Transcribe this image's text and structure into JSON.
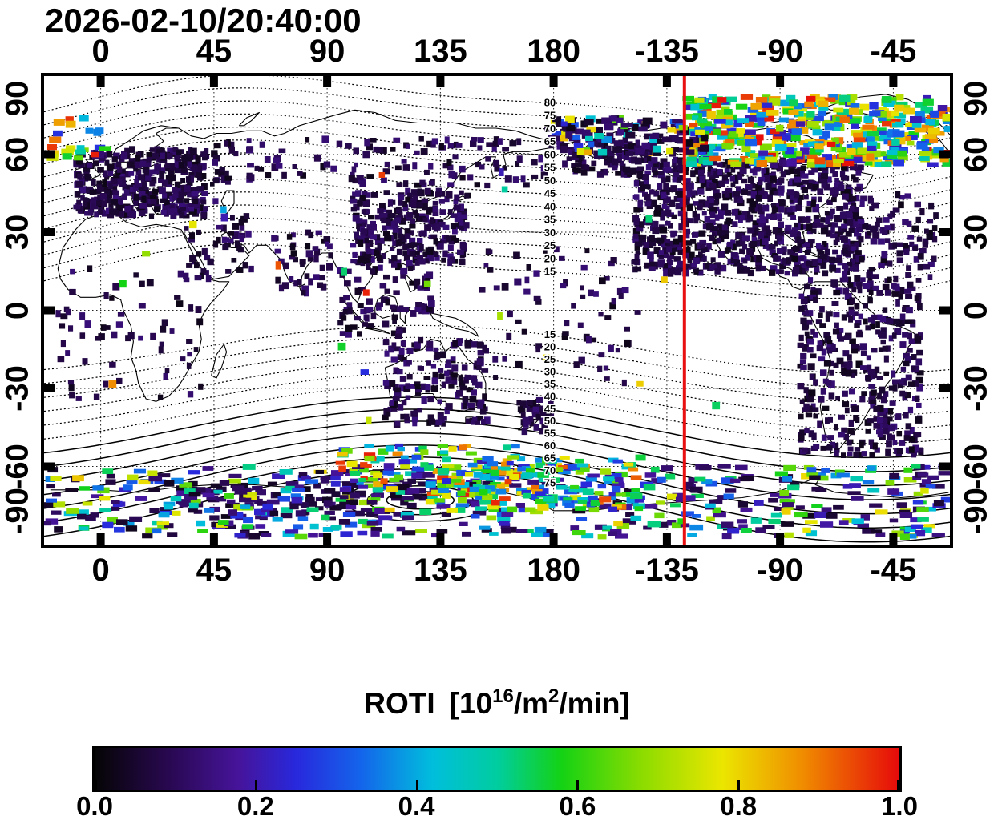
{
  "title": "2026-02-10/20:40:00",
  "chart_data": {
    "type": "heatmap",
    "description": "Global map of GNSS ROTI measurements with geomagnetic-latitude contours, world coastlines, dotted lon/lat grid and a red meridian marker line",
    "x_ticks": [
      "0",
      "45",
      "90",
      "135",
      "180",
      "-135",
      "-90",
      "-45"
    ],
    "x_tick_lons": [
      0,
      45,
      90,
      135,
      180,
      -135,
      -90,
      -45
    ],
    "y_ticks": [
      "90",
      "60",
      "30",
      "0",
      "-30",
      "-60",
      "-90"
    ],
    "y_tick_lats": [
      90,
      60,
      30,
      0,
      -30,
      -60,
      -90
    ],
    "lon_range_displayed": [
      -22.5,
      337.5
    ],
    "lat_range": [
      -90,
      90
    ],
    "grid": true,
    "contour_levels_north": [
      80,
      75,
      70,
      65,
      60,
      55,
      50,
      45,
      40,
      35,
      30,
      25,
      20,
      15
    ],
    "contour_levels_south": [
      15,
      20,
      25,
      30,
      35,
      40,
      45,
      50,
      55,
      60,
      65,
      70,
      75
    ],
    "red_meridian_lon": -128,
    "red_line_color": "#e81010",
    "colorbar": {
      "quantity": "ROTI",
      "unit_prefix": "[10",
      "unit_exponent": "16",
      "unit_mid": "/m",
      "unit_sup2": "2",
      "unit_suffix": "/min]",
      "ticks": [
        "0.0",
        "0.2",
        "0.4",
        "0.6",
        "0.8",
        "1.0"
      ],
      "range": [
        0,
        1
      ]
    },
    "colormap_stops": [
      {
        "pos": 0.0,
        "color": "#050505"
      },
      {
        "pos": 0.09,
        "color": "#28084f"
      },
      {
        "pos": 0.18,
        "color": "#46149b"
      },
      {
        "pos": 0.25,
        "color": "#2828dc"
      },
      {
        "pos": 0.33,
        "color": "#1464eb"
      },
      {
        "pos": 0.42,
        "color": "#00bedc"
      },
      {
        "pos": 0.5,
        "color": "#00cda0"
      },
      {
        "pos": 0.58,
        "color": "#14d214"
      },
      {
        "pos": 0.68,
        "color": "#8cdc00"
      },
      {
        "pos": 0.78,
        "color": "#ebe600"
      },
      {
        "pos": 0.88,
        "color": "#f08c00"
      },
      {
        "pos": 1.0,
        "color": "#e60a0a"
      }
    ],
    "scatter_regions": [
      {
        "name": "europe",
        "lon": [
          -10,
          42
        ],
        "lat": [
          36,
          62
        ],
        "count": 430,
        "mode": "dark",
        "w": 7,
        "h": 7
      },
      {
        "name": "siberia",
        "lon": [
          42,
          188
        ],
        "lat": [
          48,
          66
        ],
        "count": 150,
        "mode": "dark",
        "w": 7,
        "h": 7
      },
      {
        "name": "east-asia",
        "lon": [
          100,
          146
        ],
        "lat": [
          18,
          46
        ],
        "count": 290,
        "mode": "dark",
        "w": 7,
        "h": 7
      },
      {
        "name": "se-asia",
        "lon": [
          95,
          132
        ],
        "lat": [
          -10,
          18
        ],
        "count": 90,
        "mode": "dark",
        "w": 7,
        "h": 7
      },
      {
        "name": "india",
        "lon": [
          68,
          92
        ],
        "lat": [
          6,
          30
        ],
        "count": 45,
        "mode": "dark",
        "w": 7,
        "h": 7
      },
      {
        "name": "middle-east",
        "lon": [
          34,
          60
        ],
        "lat": [
          12,
          42
        ],
        "count": 55,
        "mode": "dark",
        "w": 7,
        "h": 7
      },
      {
        "name": "africa",
        "lon": [
          -17,
          40
        ],
        "lat": [
          -34,
          16
        ],
        "count": 65,
        "mode": "dark",
        "w": 7,
        "h": 7
      },
      {
        "name": "australia",
        "lon": [
          113,
          154
        ],
        "lat": [
          -44,
          -11
        ],
        "count": 170,
        "mode": "dark",
        "w": 7,
        "h": 7
      },
      {
        "name": "new-zealand",
        "lon": [
          166,
          179
        ],
        "lat": [
          -47,
          -34
        ],
        "count": 40,
        "mode": "dark",
        "w": 7,
        "h": 7
      },
      {
        "name": "pacific-islands",
        "lon": [
          150,
          215
        ],
        "lat": [
          -28,
          25
        ],
        "count": 75,
        "mode": "dark",
        "w": 7,
        "h": 7
      },
      {
        "name": "north-america",
        "lon": [
          212,
          302
        ],
        "lat": [
          14,
          58
        ],
        "count": 900,
        "mode": "dark",
        "w": 7,
        "h": 7
      },
      {
        "name": "alaska",
        "lon": [
          188,
          215
        ],
        "lat": [
          52,
          66
        ],
        "count": 90,
        "mode": "dark",
        "w": 7,
        "h": 7
      },
      {
        "name": "atlantic-scatter",
        "lon": [
          295,
          332
        ],
        "lat": [
          8,
          45
        ],
        "count": 120,
        "mode": "dark",
        "w": 7,
        "h": 7
      },
      {
        "name": "south-america",
        "lon": [
          278,
          326
        ],
        "lat": [
          -56,
          12
        ],
        "count": 400,
        "mode": "dark",
        "w": 7,
        "h": 7
      },
      {
        "name": "antarctica-dark",
        "lon": [
          25,
          130
        ],
        "lat": [
          -80,
          -66
        ],
        "count": 100,
        "mode": "dark",
        "w": 12,
        "h": 6
      },
      {
        "name": "na-auroral",
        "lon": [
          233,
          337
        ],
        "lat": [
          56,
          82
        ],
        "count": 470,
        "mode": "bright",
        "w": 12,
        "h": 7
      },
      {
        "name": "alaska-auroral",
        "lon": [
          178,
          240
        ],
        "lat": [
          60,
          74
        ],
        "count": 150,
        "mode": "mixed",
        "w": 10,
        "h": 7
      },
      {
        "name": "atlantic-auroral",
        "lon": [
          -22,
          2
        ],
        "lat": [
          58,
          74
        ],
        "count": 22,
        "mode": "bright",
        "w": 12,
        "h": 7
      },
      {
        "name": "south-auroral-band",
        "lon": [
          -22,
          337
        ],
        "lat": [
          -87,
          -60
        ],
        "count": 560,
        "mode": "mixed_bright",
        "w": 13,
        "h": 6
      },
      {
        "name": "south-pacific-auroral",
        "lon": [
          130,
          215
        ],
        "lat": [
          -77,
          -56
        ],
        "count": 160,
        "mode": "bright",
        "w": 12,
        "h": 6
      },
      {
        "name": "south-indian-bright",
        "lon": [
          95,
          165
        ],
        "lat": [
          -70,
          -52
        ],
        "count": 90,
        "mode": "bright",
        "w": 11,
        "h": 6
      },
      {
        "name": "sparse-bright",
        "lon": [
          -20,
          334
        ],
        "lat": [
          -55,
          55
        ],
        "count": 22,
        "mode": "bright",
        "w": 8,
        "h": 8
      }
    ]
  }
}
